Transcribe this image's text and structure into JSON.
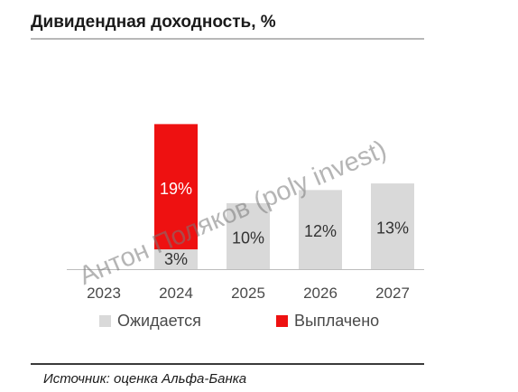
{
  "title": "Дивидендная доходность, %",
  "source": "Источник: оценка Альфа-Банка",
  "watermark": "Антон Поляков (poly invest)",
  "colors": {
    "expected": "#d9d9d9",
    "paid": "#ee1111",
    "text": "#333333"
  },
  "chart_data": {
    "type": "bar",
    "stacked": true,
    "categories": [
      "2023",
      "2024",
      "2025",
      "2026",
      "2027"
    ],
    "series": [
      {
        "name": "Ожидается",
        "values": [
          null,
          3,
          10,
          12,
          13
        ],
        "labels": [
          "",
          "3%",
          "10%",
          "12%",
          "13%"
        ]
      },
      {
        "name": "Выплачено",
        "values": [
          null,
          19,
          null,
          null,
          null
        ],
        "labels": [
          "",
          "19%",
          "",
          "",
          ""
        ]
      }
    ],
    "legend": "bottom",
    "grid": false
  }
}
